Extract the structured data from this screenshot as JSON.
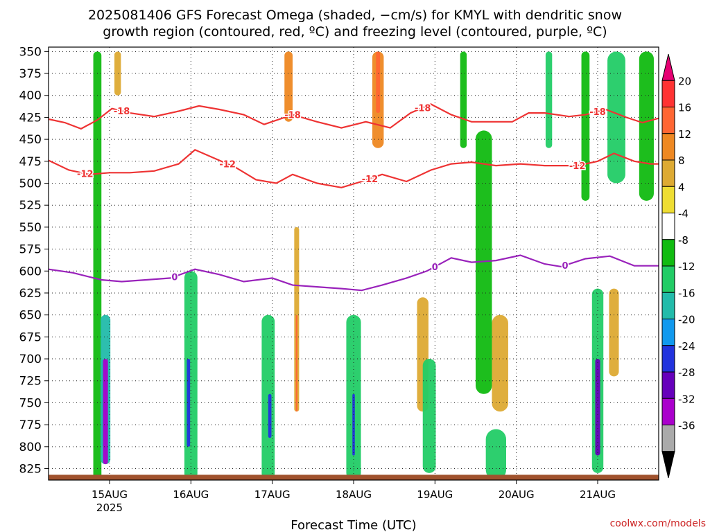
{
  "chart_data": {
    "type": "heatmap",
    "title_lines": [
      "2025081406 GFS Forecast Omega (shaded, −cm/s) for KMYL with dendritic snow",
      "growth region (contoured, red, ºC) and freezing level (contoured, purple, ºC)"
    ],
    "xlabel": "Forecast Time (UTC)",
    "ylabel": "",
    "credit": "coolwx.com/models",
    "x_ticks": [
      {
        "t": 0.75,
        "label": "15AUG",
        "sub": "2025"
      },
      {
        "t": 1.75,
        "label": "16AUG",
        "sub": ""
      },
      {
        "t": 2.75,
        "label": "17AUG",
        "sub": ""
      },
      {
        "t": 3.75,
        "label": "18AUG",
        "sub": ""
      },
      {
        "t": 4.75,
        "label": "19AUG",
        "sub": ""
      },
      {
        "t": 5.75,
        "label": "20AUG",
        "sub": ""
      },
      {
        "t": 6.75,
        "label": "21AUG",
        "sub": ""
      }
    ],
    "xlim": [
      0,
      7.5
    ],
    "y_levels": [
      350,
      375,
      400,
      425,
      450,
      475,
      500,
      525,
      550,
      575,
      600,
      625,
      650,
      675,
      700,
      725,
      750,
      775,
      800,
      825
    ],
    "ylim": [
      345,
      838
    ],
    "grid": true,
    "colorbar": {
      "ticks": [
        20,
        16,
        12,
        8,
        4,
        -4,
        -8,
        -12,
        -16,
        -20,
        -24,
        -28,
        -32,
        -36
      ],
      "colors": [
        "#e60073",
        "#ff3333",
        "#ff6633",
        "#ee8822",
        "#ddaa33",
        "#eedd33",
        "#ffffff",
        "#11bb11",
        "#22cc66",
        "#22bbaa",
        "#1199ee",
        "#2233dd",
        "#6600bb",
        "#aa00cc",
        "#aaaaaa",
        "#000000"
      ]
    },
    "contours": [
      {
        "label": "-18",
        "color": "#ee3333",
        "points": [
          [
            0.0,
            427
          ],
          [
            0.2,
            431
          ],
          [
            0.4,
            438
          ],
          [
            0.6,
            428
          ],
          [
            0.78,
            415
          ],
          [
            1.0,
            420
          ],
          [
            1.3,
            424
          ],
          [
            1.6,
            418
          ],
          [
            1.85,
            412
          ],
          [
            2.1,
            416
          ],
          [
            2.4,
            422
          ],
          [
            2.65,
            433
          ],
          [
            3.0,
            422
          ],
          [
            3.3,
            430
          ],
          [
            3.6,
            437
          ],
          [
            3.9,
            430
          ],
          [
            4.2,
            437
          ],
          [
            4.45,
            420
          ],
          [
            4.7,
            410
          ],
          [
            4.95,
            422
          ],
          [
            5.2,
            430
          ],
          [
            5.45,
            430
          ],
          [
            5.7,
            430
          ],
          [
            5.9,
            420
          ],
          [
            6.1,
            420
          ],
          [
            6.4,
            424
          ],
          [
            6.6,
            422
          ],
          [
            6.85,
            416
          ],
          [
            7.1,
            425
          ],
          [
            7.3,
            431
          ],
          [
            7.5,
            426
          ]
        ],
        "label_at": [
          0.9,
          3.0,
          4.6,
          6.75
        ]
      },
      {
        "label": "-12",
        "color": "#ee3333",
        "points": [
          [
            0.0,
            474
          ],
          [
            0.25,
            485
          ],
          [
            0.5,
            490
          ],
          [
            0.75,
            488
          ],
          [
            1.0,
            488
          ],
          [
            1.3,
            486
          ],
          [
            1.6,
            478
          ],
          [
            1.8,
            462
          ],
          [
            2.0,
            470
          ],
          [
            2.3,
            482
          ],
          [
            2.55,
            496
          ],
          [
            2.8,
            500
          ],
          [
            3.0,
            490
          ],
          [
            3.3,
            500
          ],
          [
            3.6,
            505
          ],
          [
            3.85,
            498
          ],
          [
            4.1,
            490
          ],
          [
            4.4,
            498
          ],
          [
            4.7,
            485
          ],
          [
            4.95,
            478
          ],
          [
            5.2,
            476
          ],
          [
            5.5,
            480
          ],
          [
            5.8,
            478
          ],
          [
            6.1,
            480
          ],
          [
            6.5,
            480
          ],
          [
            6.75,
            475
          ],
          [
            6.95,
            466
          ],
          [
            7.2,
            475
          ],
          [
            7.4,
            478
          ],
          [
            7.5,
            478
          ]
        ],
        "label_at": [
          0.45,
          2.2,
          3.95,
          6.5
        ]
      },
      {
        "label": "0",
        "color": "#9922bb",
        "points": [
          [
            0.0,
            598
          ],
          [
            0.3,
            602
          ],
          [
            0.65,
            610
          ],
          [
            0.9,
            612
          ],
          [
            1.2,
            610
          ],
          [
            1.5,
            608
          ],
          [
            1.8,
            598
          ],
          [
            2.1,
            604
          ],
          [
            2.4,
            612
          ],
          [
            2.75,
            608
          ],
          [
            3.0,
            616
          ],
          [
            3.3,
            618
          ],
          [
            3.6,
            620
          ],
          [
            3.85,
            622
          ],
          [
            4.1,
            616
          ],
          [
            4.4,
            608
          ],
          [
            4.65,
            600
          ],
          [
            4.95,
            585
          ],
          [
            5.2,
            590
          ],
          [
            5.5,
            588
          ],
          [
            5.8,
            582
          ],
          [
            6.1,
            592
          ],
          [
            6.3,
            595
          ],
          [
            6.6,
            586
          ],
          [
            6.9,
            583
          ],
          [
            7.2,
            594
          ],
          [
            7.5,
            594
          ]
        ],
        "label_at": [
          1.55,
          4.75,
          6.35
        ]
      }
    ],
    "shading_cells": [
      {
        "t": 0.6,
        "p0": 350,
        "p1": 840,
        "w": 0.1,
        "v": -8
      },
      {
        "t": 0.68,
        "p0": 700,
        "p1": 800,
        "w": 0.06,
        "v": -28
      },
      {
        "t": 0.7,
        "p0": 650,
        "p1": 820,
        "w": 0.12,
        "v": -16
      },
      {
        "t": 0.7,
        "p0": 700,
        "p1": 820,
        "w": 0.06,
        "v": -32
      },
      {
        "t": 0.85,
        "p0": 350,
        "p1": 400,
        "w": 0.08,
        "v": 8
      },
      {
        "t": 1.75,
        "p0": 600,
        "p1": 840,
        "w": 0.16,
        "v": -12
      },
      {
        "t": 1.72,
        "p0": 700,
        "p1": 800,
        "w": 0.04,
        "v": -24
      },
      {
        "t": 2.7,
        "p0": 650,
        "p1": 840,
        "w": 0.16,
        "v": -12
      },
      {
        "t": 2.72,
        "p0": 740,
        "p1": 790,
        "w": 0.04,
        "v": -24
      },
      {
        "t": 3.05,
        "p0": 550,
        "p1": 760,
        "w": 0.06,
        "v": 8
      },
      {
        "t": 3.05,
        "p0": 650,
        "p1": 760,
        "w": 0.02,
        "v": 16
      },
      {
        "t": 2.95,
        "p0": 350,
        "p1": 430,
        "w": 0.1,
        "v": 12
      },
      {
        "t": 3.75,
        "p0": 650,
        "p1": 840,
        "w": 0.18,
        "v": -12
      },
      {
        "t": 3.75,
        "p0": 740,
        "p1": 810,
        "w": 0.03,
        "v": -24
      },
      {
        "t": 4.05,
        "p0": 350,
        "p1": 460,
        "w": 0.14,
        "v": 12
      },
      {
        "t": 4.05,
        "p0": 350,
        "p1": 420,
        "w": 0.05,
        "v": 16
      },
      {
        "t": 4.6,
        "p0": 630,
        "p1": 760,
        "w": 0.14,
        "v": 8
      },
      {
        "t": 4.68,
        "p0": 700,
        "p1": 830,
        "w": 0.16,
        "v": -12
      },
      {
        "t": 5.55,
        "p0": 650,
        "p1": 760,
        "w": 0.2,
        "v": 8
      },
      {
        "t": 5.5,
        "p0": 780,
        "p1": 840,
        "w": 0.25,
        "v": -12
      },
      {
        "t": 6.75,
        "p0": 620,
        "p1": 830,
        "w": 0.14,
        "v": -12
      },
      {
        "t": 6.75,
        "p0": 700,
        "p1": 810,
        "w": 0.06,
        "v": -28
      },
      {
        "t": 6.95,
        "p0": 620,
        "p1": 720,
        "w": 0.12,
        "v": 8
      },
      {
        "t": 6.98,
        "p0": 350,
        "p1": 500,
        "w": 0.22,
        "v": -12
      },
      {
        "t": 7.35,
        "p0": 350,
        "p1": 520,
        "w": 0.18,
        "v": -8
      },
      {
        "t": 5.1,
        "p0": 350,
        "p1": 460,
        "w": 0.08,
        "v": -8
      },
      {
        "t": 5.35,
        "p0": 440,
        "p1": 740,
        "w": 0.2,
        "v": -8
      },
      {
        "t": 6.15,
        "p0": 350,
        "p1": 460,
        "w": 0.08,
        "v": -12
      },
      {
        "t": 6.6,
        "p0": 350,
        "p1": 520,
        "w": 0.1,
        "v": -8
      }
    ],
    "terrain_level": 832,
    "terrain_color": "#a0522d"
  }
}
